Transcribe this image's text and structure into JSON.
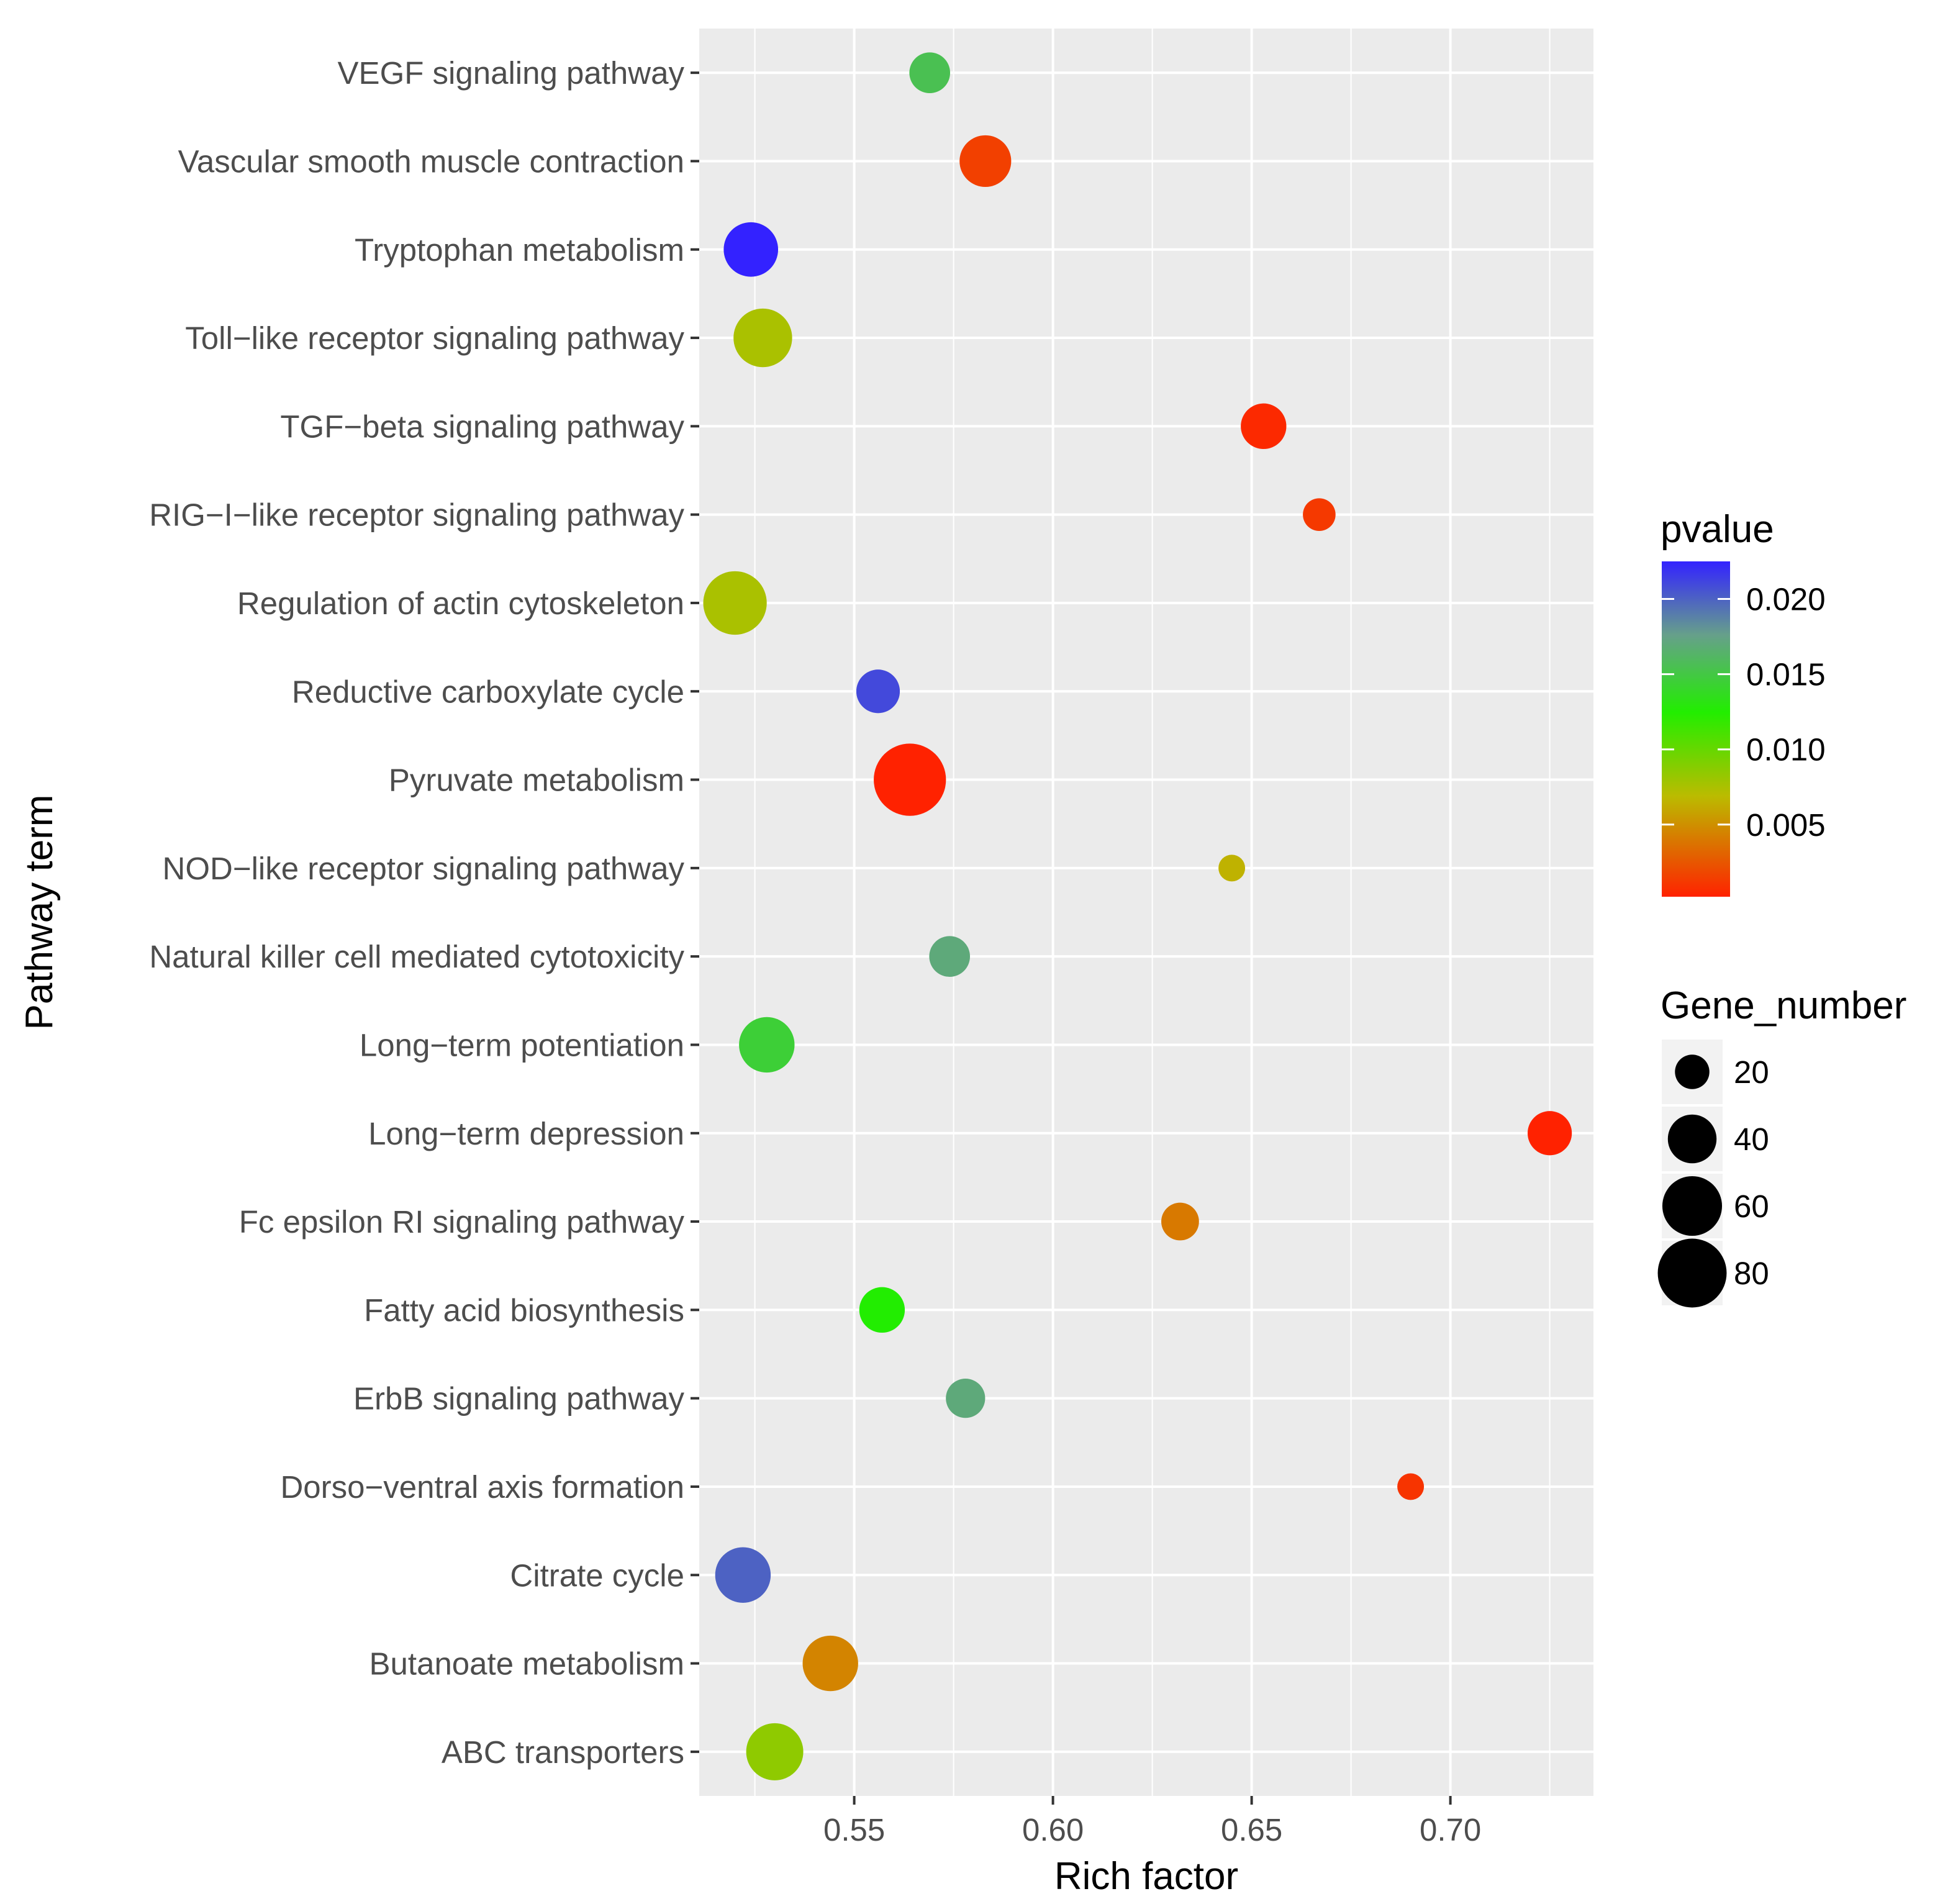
{
  "chart_data": {
    "type": "scatter",
    "title": "",
    "xlabel": "Rich factor",
    "ylabel": "Pathway term",
    "xlim": [
      0.511,
      0.736
    ],
    "xticks": [
      0.55,
      0.6,
      0.65,
      0.7
    ],
    "xtick_labels": [
      "0.55",
      "0.60",
      "0.65",
      "0.70"
    ],
    "grid": true,
    "categories": [
      "ABC transporters",
      "Butanoate metabolism",
      "Citrate cycle ",
      "Dorso−ventral axis formation",
      "ErbB signaling pathway",
      "Fatty acid biosynthesis",
      "Fc epsilon RI signaling pathway",
      "Long−term depression",
      "Long−term potentiation",
      "Natural killer cell mediated cytotoxicity",
      "NOD−like receptor signaling pathway",
      "Pyruvate metabolism",
      "Reductive carboxylate cycle ",
      "Regulation of actin cytoskeleton",
      "RIG−I−like receptor signaling pathway",
      "TGF−beta signaling pathway",
      "Toll−like receptor signaling pathway",
      "Tryptophan metabolism",
      "Vascular smooth muscle contraction",
      "VEGF signaling pathway"
    ],
    "points": [
      {
        "pathway": "ABC transporters",
        "rich_factor": 0.53,
        "gene_number": 55,
        "pvalue": 0.0085
      },
      {
        "pathway": "Butanoate metabolism",
        "rich_factor": 0.544,
        "gene_number": 52,
        "pvalue": 0.0045
      },
      {
        "pathway": "Citrate cycle ",
        "rich_factor": 0.522,
        "gene_number": 52,
        "pvalue": 0.02
      },
      {
        "pathway": "Dorso−ventral axis formation",
        "rich_factor": 0.69,
        "gene_number": 12,
        "pvalue": 0.001
      },
      {
        "pathway": "ErbB signaling pathway",
        "rich_factor": 0.578,
        "gene_number": 26,
        "pvalue": 0.017
      },
      {
        "pathway": "Fatty acid biosynthesis",
        "rich_factor": 0.557,
        "gene_number": 35,
        "pvalue": 0.0125
      },
      {
        "pathway": "Fc epsilon RI signaling pathway",
        "rich_factor": 0.632,
        "gene_number": 24,
        "pvalue": 0.004
      },
      {
        "pathway": "Long−term depression",
        "rich_factor": 0.725,
        "gene_number": 33,
        "pvalue": 0.0002
      },
      {
        "pathway": "Long−term potentiation",
        "rich_factor": 0.528,
        "gene_number": 52,
        "pvalue": 0.0145
      },
      {
        "pathway": "Natural killer cell mediated cytotoxicity",
        "rich_factor": 0.574,
        "gene_number": 28,
        "pvalue": 0.017
      },
      {
        "pathway": "NOD−like receptor signaling pathway",
        "rich_factor": 0.645,
        "gene_number": 12,
        "pvalue": 0.0065
      },
      {
        "pathway": "Pyruvate metabolism",
        "rich_factor": 0.564,
        "gene_number": 88,
        "pvalue": 0.0002
      },
      {
        "pathway": "Reductive carboxylate cycle ",
        "rich_factor": 0.556,
        "gene_number": 32,
        "pvalue": 0.021
      },
      {
        "pathway": "Regulation of actin cytoskeleton",
        "rich_factor": 0.52,
        "gene_number": 68,
        "pvalue": 0.0075
      },
      {
        "pathway": "RIG−I−like receptor signaling pathway",
        "rich_factor": 0.667,
        "gene_number": 18,
        "pvalue": 0.0012
      },
      {
        "pathway": "TGF−beta signaling pathway",
        "rich_factor": 0.653,
        "gene_number": 35,
        "pvalue": 0.0005
      },
      {
        "pathway": "Toll−like receptor signaling pathway",
        "rich_factor": 0.527,
        "gene_number": 58,
        "pvalue": 0.0075
      },
      {
        "pathway": "Tryptophan metabolism",
        "rich_factor": 0.524,
        "gene_number": 50,
        "pvalue": 0.0225
      },
      {
        "pathway": "Vascular smooth muscle contraction",
        "rich_factor": 0.583,
        "gene_number": 45,
        "pvalue": 0.0015
      },
      {
        "pathway": "VEGF signaling pathway",
        "rich_factor": 0.569,
        "gene_number": 28,
        "pvalue": 0.0155
      }
    ],
    "color_legend": {
      "title": "pvalue",
      "range": [
        0.0002,
        0.0225
      ],
      "ticks": [
        0.02,
        0.015,
        0.01,
        0.005
      ],
      "tick_labels": [
        "0.020",
        "0.015",
        "0.010",
        "0.005"
      ],
      "low_color": "#ff2200",
      "mid_color": "#22ee00",
      "high_color": "#3322ff",
      "position": "right"
    },
    "size_legend": {
      "title": "Gene_number",
      "values": [
        20,
        40,
        60,
        80
      ],
      "labels": [
        "20",
        "40",
        "60",
        "80"
      ],
      "position": "right"
    },
    "colors": {
      "panel_bg": "#ebebeb",
      "grid_major": "#ffffff",
      "tick_text": "#4d4d4d"
    }
  }
}
